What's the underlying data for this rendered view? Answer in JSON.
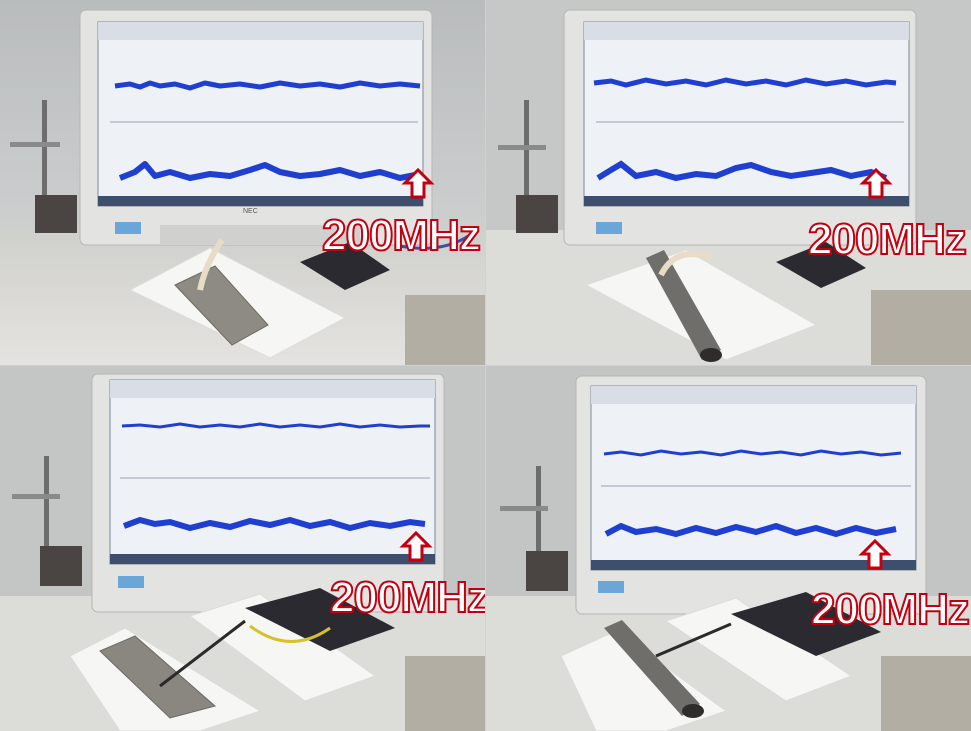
{
  "figure": {
    "panels": [
      {
        "id": "top-left",
        "annotation": "200MHz",
        "sample": "flat-plate-probe-on"
      },
      {
        "id": "top-right",
        "annotation": "200MHz",
        "sample": "pipe-probe-on"
      },
      {
        "id": "bottom-left",
        "annotation": "200MHz",
        "sample": "flat-plate-wire"
      },
      {
        "id": "bottom-right",
        "annotation": "200MHz",
        "sample": "pipe-wire"
      }
    ],
    "monitor_brand": "NEC",
    "arrow_color": "#c40010",
    "trace_color": "#1f3fd0",
    "screen_bg": "#eef1f6"
  }
}
